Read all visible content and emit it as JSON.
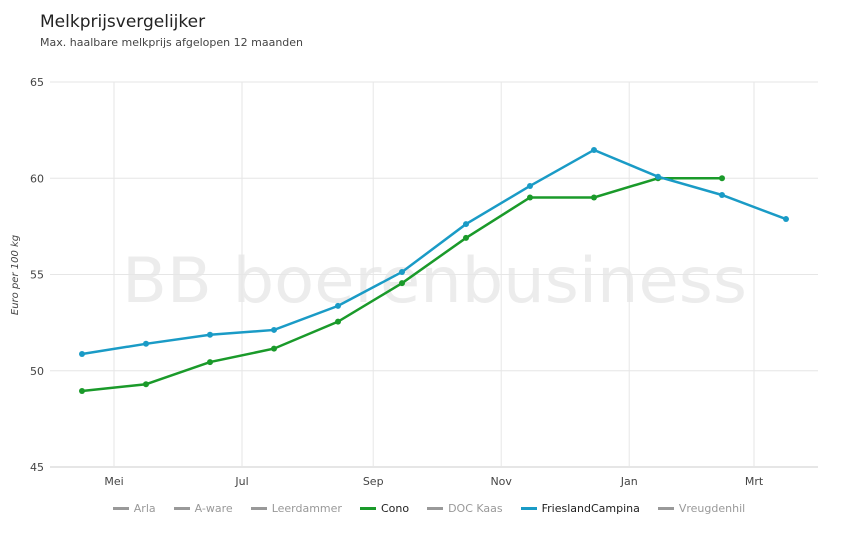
{
  "chart_data": {
    "type": "line",
    "title": "Melkprijsvergelijker",
    "subtitle": "Max. haalbare melkprijs afgelopen 12 maanden",
    "ylabel": "Euro per 100 kg",
    "watermark": "BB boerenbusiness",
    "ylim": [
      45,
      65
    ],
    "yticks": [
      45,
      50,
      55,
      60,
      65
    ],
    "x_months_index": [
      0,
      1,
      2,
      3,
      4,
      5,
      6,
      7,
      8,
      9,
      10,
      11
    ],
    "xticks": [
      {
        "label": "Mei",
        "pos": 0.5
      },
      {
        "label": "Jul",
        "pos": 2.5
      },
      {
        "label": "Sep",
        "pos": 4.55
      },
      {
        "label": "Nov",
        "pos": 6.55
      },
      {
        "label": "Jan",
        "pos": 8.55
      },
      {
        "label": "Mrt",
        "pos": 10.5
      }
    ],
    "series": [
      {
        "name": "Arla",
        "color": "#999999",
        "active": false,
        "values": []
      },
      {
        "name": "A-ware",
        "color": "#999999",
        "active": false,
        "values": []
      },
      {
        "name": "Leerdammer",
        "color": "#999999",
        "active": false,
        "values": []
      },
      {
        "name": "Cono",
        "color": "#1a9a2a",
        "active": true,
        "values": [
          48.95,
          49.3,
          50.45,
          51.15,
          52.55,
          54.55,
          56.9,
          59.0,
          59.0,
          60.0,
          60.0
        ]
      },
      {
        "name": "DOC Kaas",
        "color": "#999999",
        "active": false,
        "values": []
      },
      {
        "name": "FrieslandCampina",
        "color": "#1a9bc6",
        "active": true,
        "values": [
          50.87,
          51.4,
          51.87,
          52.12,
          53.37,
          55.13,
          57.62,
          59.6,
          61.47,
          60.08,
          59.13,
          57.88
        ]
      },
      {
        "name": "Vreugdenhil",
        "color": "#999999",
        "active": false,
        "values": []
      }
    ]
  }
}
